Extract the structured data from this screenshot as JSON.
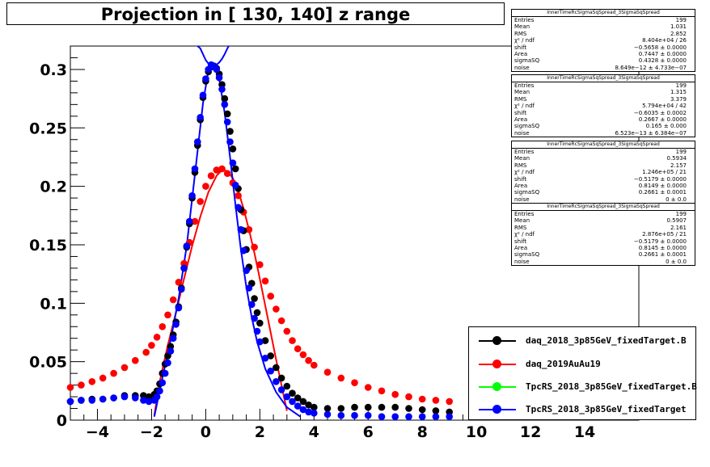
{
  "chart_data": {
    "type": "scatter",
    "title": "Projection in [ 130, 140] z range",
    "xlim": [
      -5,
      16
    ],
    "ylim": [
      0,
      0.32
    ],
    "x_ticks": [
      -4,
      -2,
      0,
      2,
      4,
      6,
      8,
      10,
      12,
      14
    ],
    "y_ticks": [
      0,
      0.05,
      0.1,
      0.15,
      0.2,
      0.25,
      0.3
    ],
    "x_tick_labels": [
      "−4",
      "−2",
      "0",
      "2",
      "4",
      "6",
      "8",
      "10",
      "12",
      "14"
    ],
    "y_tick_labels": [
      "0",
      "0.05",
      "0.1",
      "0.15",
      "0.2",
      "0.25",
      "0.3"
    ],
    "series": [
      {
        "name": "daq_2018_3p85GeV_fixedTarget.B",
        "color": "#000000",
        "points": [
          [
            -5,
            0.016
          ],
          [
            -4.6,
            0.017
          ],
          [
            -4.2,
            0.018
          ],
          [
            -3.8,
            0.018
          ],
          [
            -3.4,
            0.019
          ],
          [
            -3,
            0.021
          ],
          [
            -2.6,
            0.021
          ],
          [
            -2.3,
            0.021
          ],
          [
            -2.1,
            0.02
          ],
          [
            -1.9,
            0.022
          ],
          [
            -1.8,
            0.025
          ],
          [
            -1.7,
            0.031
          ],
          [
            -1.6,
            0.04
          ],
          [
            -1.5,
            0.048
          ],
          [
            -1.4,
            0.055
          ],
          [
            -1.3,
            0.063
          ],
          [
            -1.2,
            0.073
          ],
          [
            -1.1,
            0.084
          ],
          [
            -1,
            0.097
          ],
          [
            -0.9,
            0.113
          ],
          [
            -0.8,
            0.13
          ],
          [
            -0.7,
            0.148
          ],
          [
            -0.6,
            0.168
          ],
          [
            -0.5,
            0.19
          ],
          [
            -0.4,
            0.212
          ],
          [
            -0.3,
            0.235
          ],
          [
            -0.2,
            0.257
          ],
          [
            -0.1,
            0.276
          ],
          [
            0,
            0.29
          ],
          [
            0.1,
            0.298
          ],
          [
            0.2,
            0.302
          ],
          [
            0.3,
            0.303
          ],
          [
            0.4,
            0.301
          ],
          [
            0.5,
            0.296
          ],
          [
            0.6,
            0.287
          ],
          [
            0.7,
            0.275
          ],
          [
            0.8,
            0.262
          ],
          [
            0.9,
            0.247
          ],
          [
            1,
            0.232
          ],
          [
            1.1,
            0.215
          ],
          [
            1.2,
            0.198
          ],
          [
            1.3,
            0.18
          ],
          [
            1.4,
            0.162
          ],
          [
            1.5,
            0.146
          ],
          [
            1.6,
            0.131
          ],
          [
            1.7,
            0.117
          ],
          [
            1.8,
            0.104
          ],
          [
            1.9,
            0.092
          ],
          [
            2,
            0.083
          ],
          [
            2.2,
            0.068
          ],
          [
            2.4,
            0.055
          ],
          [
            2.6,
            0.045
          ],
          [
            2.8,
            0.036
          ],
          [
            3,
            0.029
          ],
          [
            3.2,
            0.023
          ],
          [
            3.4,
            0.019
          ],
          [
            3.6,
            0.016
          ],
          [
            3.8,
            0.013
          ],
          [
            4,
            0.011
          ],
          [
            4.5,
            0.01
          ],
          [
            5,
            0.01
          ],
          [
            5.5,
            0.011
          ],
          [
            6,
            0.011
          ],
          [
            6.5,
            0.011
          ],
          [
            7,
            0.011
          ],
          [
            7.5,
            0.01
          ],
          [
            8,
            0.009
          ],
          [
            8.5,
            0.008
          ],
          [
            9,
            0.007
          ]
        ]
      },
      {
        "name": "daq_2019AuAu19",
        "color": "#ff0000",
        "points": [
          [
            -5,
            0.028
          ],
          [
            -4.6,
            0.03
          ],
          [
            -4.2,
            0.033
          ],
          [
            -3.8,
            0.036
          ],
          [
            -3.4,
            0.04
          ],
          [
            -3,
            0.045
          ],
          [
            -2.6,
            0.051
          ],
          [
            -2.2,
            0.058
          ],
          [
            -2,
            0.064
          ],
          [
            -1.8,
            0.071
          ],
          [
            -1.6,
            0.08
          ],
          [
            -1.4,
            0.09
          ],
          [
            -1.2,
            0.103
          ],
          [
            -1,
            0.118
          ],
          [
            -0.8,
            0.134
          ],
          [
            -0.6,
            0.152
          ],
          [
            -0.4,
            0.17
          ],
          [
            -0.2,
            0.187
          ],
          [
            0,
            0.2
          ],
          [
            0.2,
            0.209
          ],
          [
            0.4,
            0.214
          ],
          [
            0.6,
            0.215
          ],
          [
            0.8,
            0.211
          ],
          [
            1,
            0.203
          ],
          [
            1.2,
            0.192
          ],
          [
            1.4,
            0.178
          ],
          [
            1.6,
            0.163
          ],
          [
            1.8,
            0.148
          ],
          [
            2,
            0.133
          ],
          [
            2.2,
            0.119
          ],
          [
            2.4,
            0.106
          ],
          [
            2.6,
            0.095
          ],
          [
            2.8,
            0.085
          ],
          [
            3,
            0.076
          ],
          [
            3.2,
            0.068
          ],
          [
            3.4,
            0.061
          ],
          [
            3.6,
            0.056
          ],
          [
            3.8,
            0.051
          ],
          [
            4,
            0.047
          ],
          [
            4.5,
            0.041
          ],
          [
            5,
            0.036
          ],
          [
            5.5,
            0.032
          ],
          [
            6,
            0.028
          ],
          [
            6.5,
            0.025
          ],
          [
            7,
            0.022
          ],
          [
            7.5,
            0.02
          ],
          [
            8,
            0.018
          ],
          [
            8.5,
            0.017
          ],
          [
            9,
            0.016
          ]
        ]
      },
      {
        "name": "TpcRS_2018_3p85GeV_fixedTarget.B",
        "color": "#00ff00",
        "points": []
      },
      {
        "name": "TpcRS_2018_3p85GeV_fixedTarget",
        "color": "#0000ff",
        "points": [
          [
            -5,
            0.016
          ],
          [
            -4.6,
            0.017
          ],
          [
            -4.2,
            0.017
          ],
          [
            -3.8,
            0.018
          ],
          [
            -3.4,
            0.019
          ],
          [
            -3,
            0.02
          ],
          [
            -2.6,
            0.019
          ],
          [
            -2.3,
            0.017
          ],
          [
            -2.1,
            0.016
          ],
          [
            -1.9,
            0.017
          ],
          [
            -1.8,
            0.02
          ],
          [
            -1.7,
            0.025
          ],
          [
            -1.6,
            0.032
          ],
          [
            -1.5,
            0.04
          ],
          [
            -1.4,
            0.049
          ],
          [
            -1.3,
            0.059
          ],
          [
            -1.2,
            0.07
          ],
          [
            -1.1,
            0.082
          ],
          [
            -1,
            0.096
          ],
          [
            -0.9,
            0.112
          ],
          [
            -0.8,
            0.13
          ],
          [
            -0.7,
            0.149
          ],
          [
            -0.6,
            0.17
          ],
          [
            -0.5,
            0.192
          ],
          [
            -0.4,
            0.215
          ],
          [
            -0.3,
            0.238
          ],
          [
            -0.2,
            0.259
          ],
          [
            -0.1,
            0.278
          ],
          [
            0,
            0.292
          ],
          [
            0.1,
            0.3
          ],
          [
            0.2,
            0.304
          ],
          [
            0.3,
            0.303
          ],
          [
            0.4,
            0.3
          ],
          [
            0.5,
            0.293
          ],
          [
            0.6,
            0.283
          ],
          [
            0.7,
            0.27
          ],
          [
            0.8,
            0.255
          ],
          [
            0.9,
            0.238
          ],
          [
            1,
            0.22
          ],
          [
            1.1,
            0.201
          ],
          [
            1.2,
            0.182
          ],
          [
            1.3,
            0.163
          ],
          [
            1.4,
            0.145
          ],
          [
            1.5,
            0.128
          ],
          [
            1.6,
            0.113
          ],
          [
            1.7,
            0.099
          ],
          [
            1.8,
            0.087
          ],
          [
            1.9,
            0.076
          ],
          [
            2,
            0.067
          ],
          [
            2.2,
            0.053
          ],
          [
            2.4,
            0.042
          ],
          [
            2.6,
            0.033
          ],
          [
            2.8,
            0.026
          ],
          [
            3,
            0.02
          ],
          [
            3.2,
            0.016
          ],
          [
            3.4,
            0.012
          ],
          [
            3.6,
            0.009
          ],
          [
            3.8,
            0.007
          ],
          [
            4,
            0.006
          ],
          [
            4.5,
            0.005
          ],
          [
            5,
            0.004
          ],
          [
            5.5,
            0.004
          ],
          [
            6,
            0.004
          ],
          [
            6.5,
            0.003
          ],
          [
            7,
            0.003
          ],
          [
            7.5,
            0.003
          ],
          [
            8,
            0.003
          ],
          [
            8.5,
            0.003
          ],
          [
            9,
            0.003
          ]
        ]
      }
    ],
    "fits": [
      {
        "series": "daq_2018_3p85GeV_fixedTarget.B",
        "color": "#0000ff",
        "points": [
          [
            -0.3,
            0.32
          ],
          [
            -0.2,
            0.318
          ],
          [
            -0.1,
            0.313
          ],
          [
            0,
            0.308
          ],
          [
            0.1,
            0.305
          ],
          [
            0.2,
            0.303
          ],
          [
            0.3,
            0.303
          ],
          [
            0.4,
            0.304
          ],
          [
            0.5,
            0.306
          ],
          [
            0.6,
            0.309
          ],
          [
            0.7,
            0.313
          ],
          [
            0.8,
            0.318
          ],
          [
            0.85,
            0.32
          ]
        ]
      },
      {
        "series": "daq_2019AuAu19",
        "color": "#ff0000",
        "points": [
          [
            -1.9,
            0.004
          ],
          [
            -1.7,
            0.033
          ],
          [
            -1.4,
            0.064
          ],
          [
            -1.1,
            0.092
          ],
          [
            -0.8,
            0.121
          ],
          [
            -0.5,
            0.149
          ],
          [
            -0.2,
            0.174
          ],
          [
            0.1,
            0.195
          ],
          [
            0.4,
            0.209
          ],
          [
            0.6,
            0.214
          ],
          [
            0.8,
            0.213
          ],
          [
            1,
            0.207
          ],
          [
            1.2,
            0.196
          ],
          [
            1.4,
            0.181
          ],
          [
            1.6,
            0.163
          ],
          [
            1.8,
            0.143
          ],
          [
            2,
            0.121
          ],
          [
            2.2,
            0.098
          ],
          [
            2.4,
            0.075
          ],
          [
            2.6,
            0.052
          ],
          [
            2.8,
            0.03
          ],
          [
            3,
            0.008
          ]
        ]
      },
      {
        "series": "TpcRS_2018_3p85GeV_fixedTarget",
        "color": "#0000ff",
        "points": [
          [
            -1.9,
            0.003
          ],
          [
            -1.6,
            0.036
          ],
          [
            -1.3,
            0.068
          ],
          [
            -1,
            0.104
          ],
          [
            -0.7,
            0.149
          ],
          [
            -0.4,
            0.21
          ],
          [
            -0.1,
            0.271
          ],
          [
            0.1,
            0.299
          ],
          [
            0.3,
            0.304
          ],
          [
            0.5,
            0.292
          ],
          [
            0.7,
            0.263
          ],
          [
            0.9,
            0.225
          ],
          [
            1.1,
            0.184
          ],
          [
            1.3,
            0.146
          ],
          [
            1.5,
            0.114
          ],
          [
            1.7,
            0.088
          ],
          [
            1.9,
            0.067
          ],
          [
            2.2,
            0.044
          ],
          [
            2.6,
            0.024
          ],
          [
            3,
            0.011
          ],
          [
            3.5,
            0.003
          ]
        ]
      }
    ],
    "legend_position": "bottom-right",
    "stat_boxes": [
      {
        "header": "InnerTimeRcSigmaSqSpread_3SigmaSqSpread",
        "rows": [
          [
            "Entries",
            "199"
          ],
          [
            "Mean",
            "1.031"
          ],
          [
            "RMS",
            "2.852"
          ],
          [
            "χ² / ndf",
            "8.404e+04 / 26"
          ],
          [
            "shift",
            "−0.5658 ± 0.0000"
          ],
          [
            "Area",
            "0.7447 ± 0.0000"
          ],
          [
            "sigmaSQ",
            "0.4328 ± 0.0000"
          ],
          [
            "noise",
            "8.649e−12 ± 4.733e−07"
          ]
        ]
      },
      {
        "header": "InnerTimeRcSigmaSqSpread_3SigmaSqSpread",
        "rows": [
          [
            "Entries",
            "199"
          ],
          [
            "Mean",
            "1.315"
          ],
          [
            "RMS",
            "3.379"
          ],
          [
            "χ² / ndf",
            "5.794e+04 / 42"
          ],
          [
            "shift",
            "−0.6035 ± 0.0002"
          ],
          [
            "Area",
            "0.2667 ± 0.0000"
          ],
          [
            "sigmaSQ",
            "0.165 ± 0.000"
          ],
          [
            "noise",
            "6.523e−13 ± 6.384e−07"
          ]
        ]
      },
      {
        "header": "InnerTimeRcSigmaSqSpread_3SigmaSqSpread",
        "rows": [
          [
            "Entries",
            "199"
          ],
          [
            "Mean",
            "0.5934"
          ],
          [
            "RMS",
            "2.157"
          ],
          [
            "χ² / ndf",
            "1.246e+05 / 21"
          ],
          [
            "shift",
            "−0.5179 ± 0.0000"
          ],
          [
            "Area",
            "0.8149 ± 0.0000"
          ],
          [
            "sigmaSQ",
            "0.2661 ± 0.0001"
          ],
          [
            "noise",
            "0 ± 0.0"
          ]
        ]
      },
      {
        "header": "InnerTimeRcSigmaSqSpread_3SigmaSqSpread",
        "rows": [
          [
            "Entries",
            "199"
          ],
          [
            "Mean",
            "0.5907"
          ],
          [
            "RMS",
            "2.161"
          ],
          [
            "χ² / ndf",
            "2.876e+05 / 21"
          ],
          [
            "shift",
            "−0.5179 ± 0.0000"
          ],
          [
            "Area",
            "0.8145 ± 0.0000"
          ],
          [
            "sigmaSQ",
            "0.2661 ± 0.0001"
          ],
          [
            "noise",
            "0 ± 0.0"
          ]
        ]
      }
    ]
  }
}
